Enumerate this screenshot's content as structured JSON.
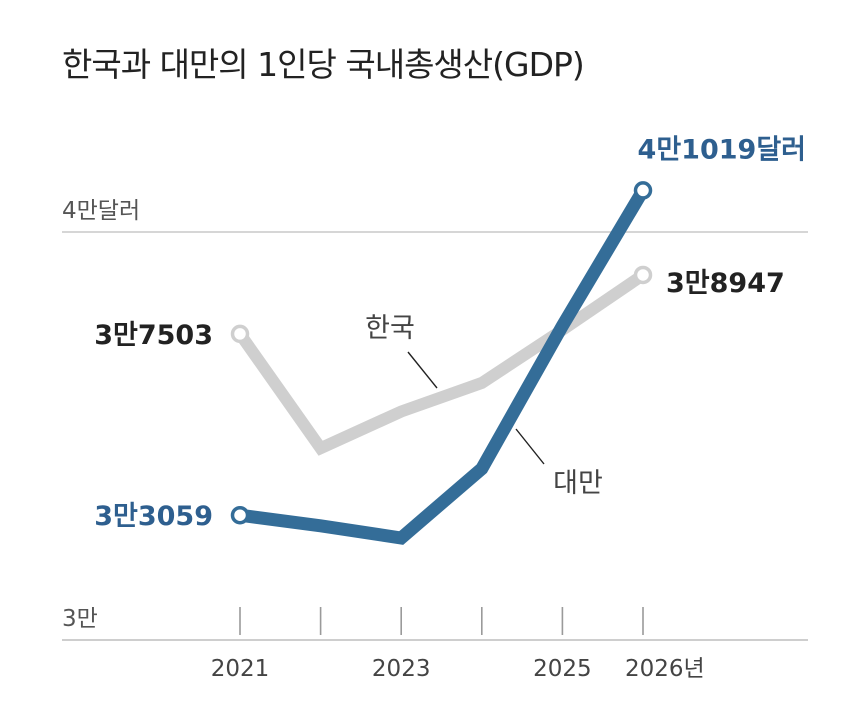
{
  "chart_data": {
    "type": "line",
    "title": "한국과 대만의 1인당 국내총생산(GDP)",
    "x": [
      2021,
      2022,
      2023,
      2024,
      2025,
      2026
    ],
    "x_tick_labels": [
      "2021",
      "2023",
      "2025",
      "2026년"
    ],
    "x_tick_positions": [
      2021,
      2023,
      2025,
      2026
    ],
    "y_tick_labels": [
      "3만",
      "4만달러"
    ],
    "y_tick_values": [
      30000,
      40000
    ],
    "ylim": [
      30000,
      41200
    ],
    "grid": false,
    "series": [
      {
        "name": "한국",
        "color": "#cfcfcf",
        "values": [
          37503,
          34700,
          35600,
          36300,
          37600,
          38947
        ],
        "start_label": "3만7503",
        "end_label": "3만8947",
        "label_color": "#222222"
      },
      {
        "name": "대만",
        "color": "#346d98",
        "values": [
          33059,
          32800,
          32500,
          34200,
          37700,
          41019
        ],
        "start_label": "3만3059",
        "end_label": "4만1019달러",
        "label_color": "#2e5f8f"
      }
    ]
  }
}
